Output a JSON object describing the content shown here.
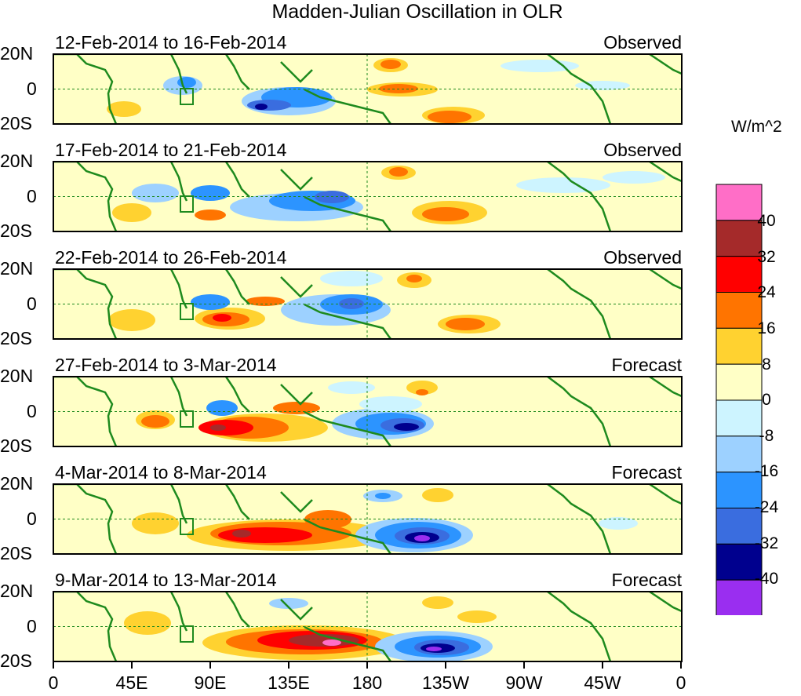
{
  "title": "Madden-Julian Oscillation in OLR",
  "panels": [
    {
      "period": "12-Feb-2014 to 16-Feb-2014",
      "type": "Observed"
    },
    {
      "period": "17-Feb-2014 to 21-Feb-2014",
      "type": "Observed"
    },
    {
      "period": "22-Feb-2014 to 26-Feb-2014",
      "type": "Observed"
    },
    {
      "period": "27-Feb-2014 to 3-Mar-2014",
      "type": "Forecast"
    },
    {
      "period": "4-Mar-2014 to 8-Mar-2014",
      "type": "Forecast"
    },
    {
      "period": "9-Mar-2014 to 13-Mar-2014",
      "type": "Forecast"
    }
  ],
  "latitude_labels": [
    "20N",
    "0",
    "20S"
  ],
  "longitude_labels": [
    "0",
    "45E",
    "90E",
    "135E",
    "180",
    "135W",
    "90W",
    "45W",
    "0"
  ],
  "colorbar": {
    "units": "W/m^2",
    "levels": [
      "40",
      "32",
      "24",
      "16",
      "8",
      "0",
      "-8",
      "-16",
      "-24",
      "-32",
      "-40"
    ],
    "colors": [
      "#ff6ec7",
      "#a52a2a",
      "#ff0000",
      "#ff7400",
      "#ffd230",
      "#ffffc6",
      "#cdf4ff",
      "#9dd1ff",
      "#2c94ff",
      "#3a6ddf",
      "#00008e",
      "#9a2ef0"
    ]
  },
  "map_colors": {
    "coast": "#1e8a1e",
    "frame": "#000000",
    "guide": "#1e8a1e"
  }
}
